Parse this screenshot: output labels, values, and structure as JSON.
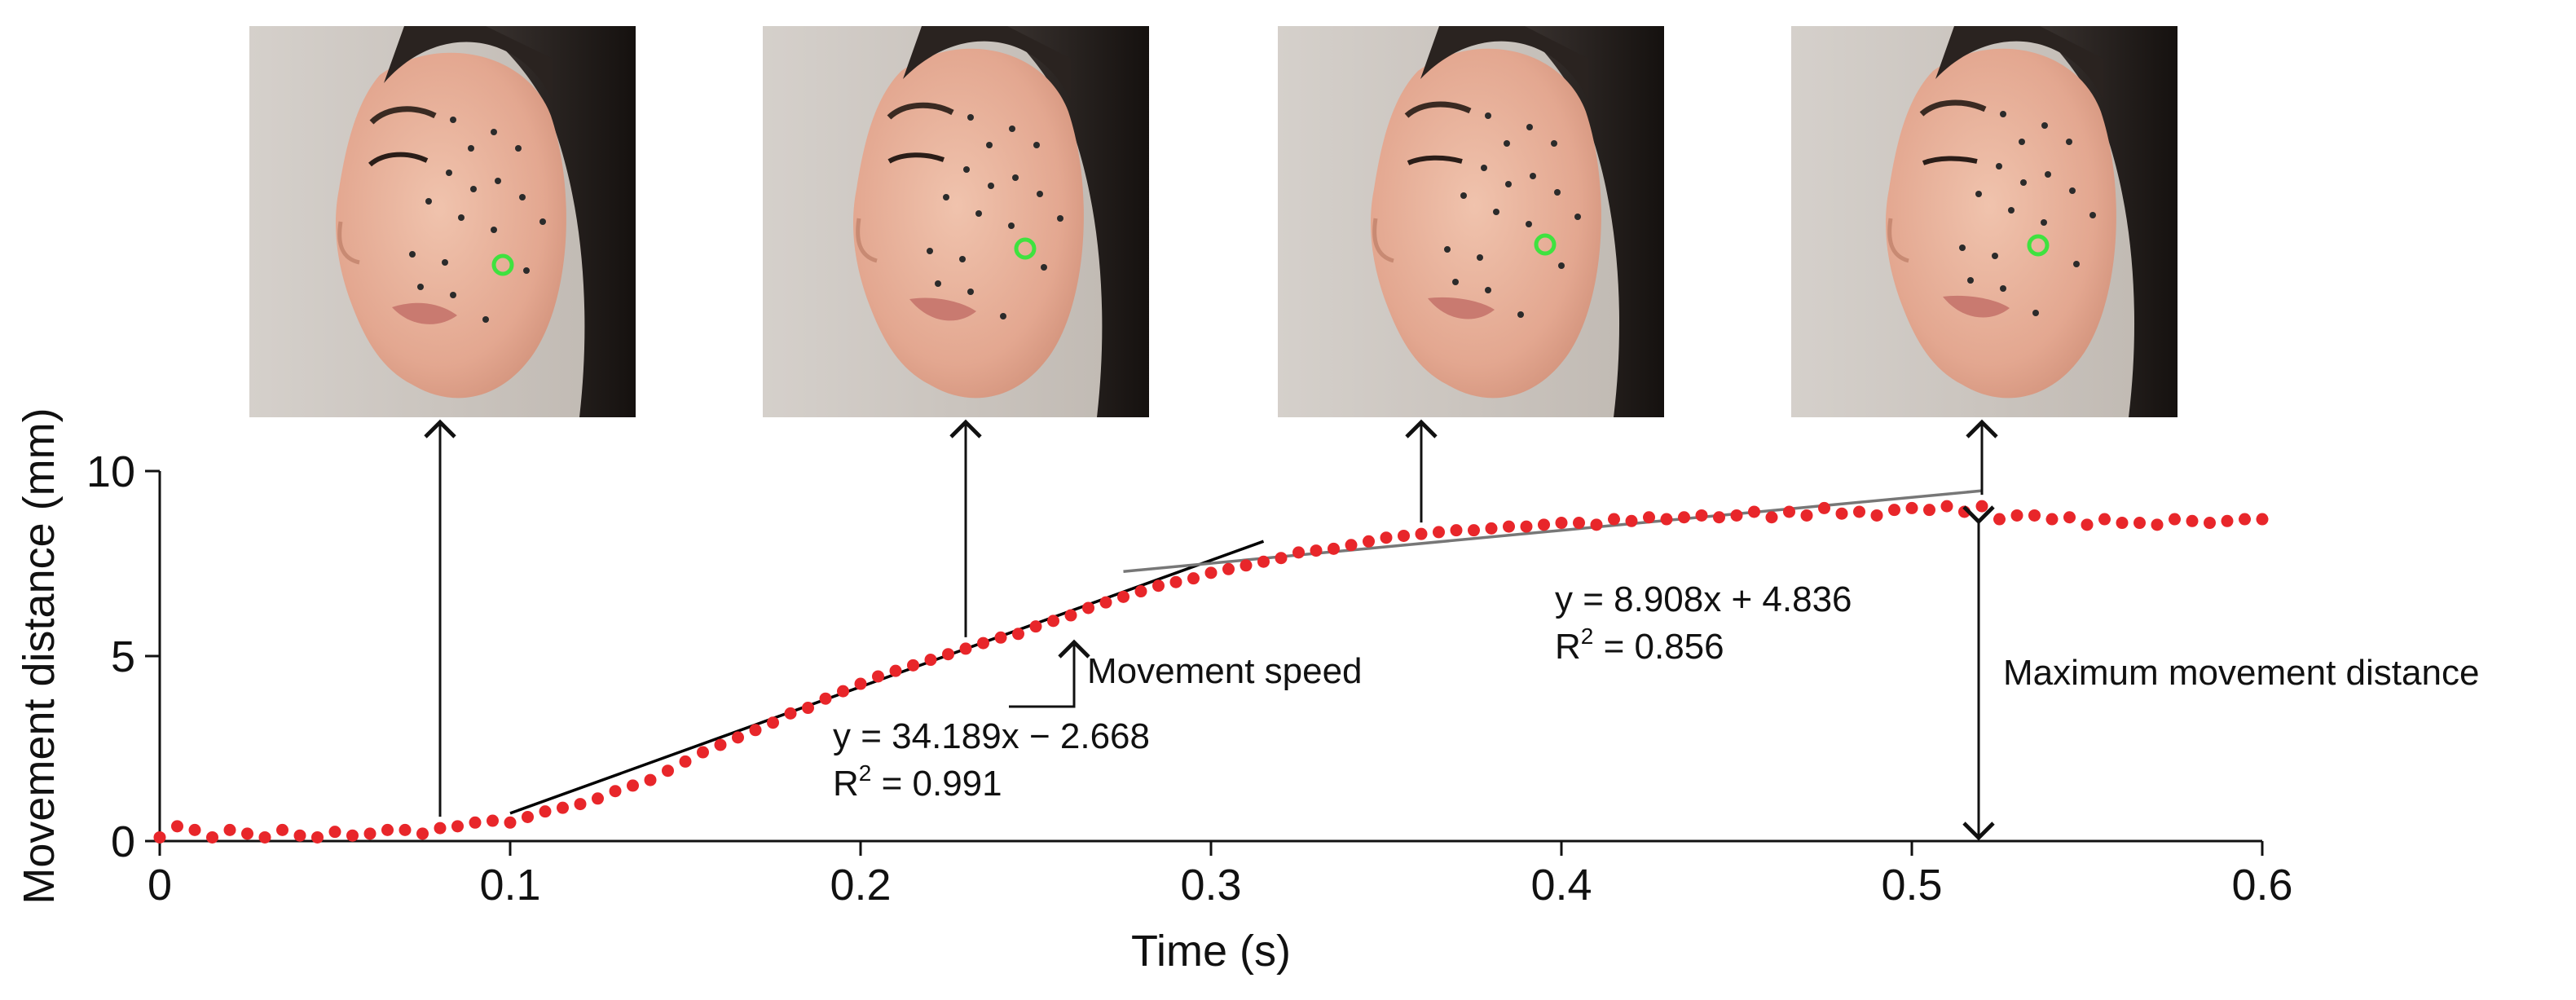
{
  "chart_data": {
    "type": "scatter",
    "title": "",
    "xlabel": "Time (s)",
    "ylabel": "Movement distance (mm)",
    "xlim": [
      0,
      0.6
    ],
    "ylim": [
      0,
      10
    ],
    "x_ticks": [
      {
        "value": 0,
        "label": "0"
      },
      {
        "value": 0.1,
        "label": "0.1"
      },
      {
        "value": 0.2,
        "label": "0.2"
      },
      {
        "value": 0.3,
        "label": "0.3"
      },
      {
        "value": 0.4,
        "label": "0.4"
      },
      {
        "value": 0.5,
        "label": "0.5"
      },
      {
        "value": 0.6,
        "label": "0.6"
      }
    ],
    "y_ticks": [
      {
        "value": 0,
        "label": "0"
      },
      {
        "value": 5,
        "label": "5"
      },
      {
        "value": 10,
        "label": "10"
      }
    ],
    "grid": false,
    "legend": "none",
    "point_color": "#e8262a",
    "series": [
      {
        "x": [
          0.0,
          0.005,
          0.01,
          0.015,
          0.02,
          0.025,
          0.03,
          0.035,
          0.04,
          0.045,
          0.05,
          0.055,
          0.06,
          0.065,
          0.07,
          0.075,
          0.08,
          0.085,
          0.09,
          0.095,
          0.1,
          0.105,
          0.11,
          0.115,
          0.12,
          0.125,
          0.13,
          0.135,
          0.14,
          0.145,
          0.15,
          0.155,
          0.16,
          0.165,
          0.17,
          0.175,
          0.18,
          0.185,
          0.19,
          0.195,
          0.2,
          0.205,
          0.21,
          0.215,
          0.22,
          0.225,
          0.23,
          0.235,
          0.24,
          0.245,
          0.25,
          0.255,
          0.26,
          0.265,
          0.27,
          0.275,
          0.28,
          0.285,
          0.29,
          0.295,
          0.3,
          0.305,
          0.31,
          0.315,
          0.32,
          0.325,
          0.33,
          0.335,
          0.34,
          0.345,
          0.35,
          0.355,
          0.36,
          0.365,
          0.37,
          0.375,
          0.38,
          0.385,
          0.39,
          0.395,
          0.4,
          0.405,
          0.41,
          0.415,
          0.42,
          0.425,
          0.43,
          0.435,
          0.44,
          0.445,
          0.45,
          0.455,
          0.46,
          0.465,
          0.47,
          0.475,
          0.48,
          0.485,
          0.49,
          0.495,
          0.5,
          0.505,
          0.51,
          0.515,
          0.52,
          0.525,
          0.53,
          0.535,
          0.54,
          0.545,
          0.55,
          0.555,
          0.56,
          0.565,
          0.57,
          0.575,
          0.58,
          0.585,
          0.59,
          0.595,
          0.6
        ],
        "y": [
          0.1,
          0.4,
          0.3,
          0.1,
          0.3,
          0.2,
          0.1,
          0.3,
          0.15,
          0.1,
          0.25,
          0.15,
          0.2,
          0.3,
          0.3,
          0.2,
          0.35,
          0.4,
          0.5,
          0.55,
          0.5,
          0.65,
          0.8,
          0.9,
          1.0,
          1.15,
          1.35,
          1.5,
          1.65,
          1.9,
          2.15,
          2.4,
          2.6,
          2.8,
          3.0,
          3.2,
          3.45,
          3.6,
          3.85,
          4.05,
          4.25,
          4.45,
          4.6,
          4.75,
          4.9,
          5.05,
          5.2,
          5.35,
          5.5,
          5.6,
          5.8,
          5.95,
          6.1,
          6.3,
          6.45,
          6.6,
          6.75,
          6.9,
          7.0,
          7.1,
          7.25,
          7.35,
          7.45,
          7.55,
          7.65,
          7.8,
          7.85,
          7.9,
          8.0,
          8.1,
          8.2,
          8.25,
          8.3,
          8.35,
          8.4,
          8.4,
          8.45,
          8.5,
          8.5,
          8.55,
          8.6,
          8.6,
          8.55,
          8.7,
          8.65,
          8.75,
          8.7,
          8.75,
          8.8,
          8.75,
          8.8,
          8.9,
          8.75,
          8.9,
          8.8,
          9.0,
          8.85,
          8.9,
          8.8,
          8.95,
          9.0,
          8.95,
          9.05,
          8.9,
          9.05,
          8.7,
          8.8,
          8.8,
          8.7,
          8.75,
          8.55,
          8.7,
          8.6,
          8.6,
          8.55,
          8.7,
          8.65,
          8.6,
          8.65,
          8.7,
          8.7
        ]
      }
    ],
    "fits": [
      {
        "x0": 0.1,
        "x1": 0.315,
        "slope": 34.189,
        "intercept": -2.668,
        "color": "#000000"
      },
      {
        "x0": 0.275,
        "x1": 0.52,
        "slope": 8.908,
        "intercept": 4.836,
        "color": "#777777"
      }
    ],
    "annotations": {
      "fit1_equation": "y = 34.189x − 2.668",
      "fit1_r2_prefix": "R",
      "fit1_r2_sup": "2",
      "fit1_r2_value": " = 0.991",
      "fit2_equation": "y = 8.908x + 4.836",
      "fit2_r2_prefix": "R",
      "fit2_r2_sup": "2",
      "fit2_r2_value": " = 0.856",
      "speed_label": "Movement speed",
      "max_label": "Maximum movement distance"
    },
    "frame_times": [
      0.08,
      0.23,
      0.36,
      0.52
    ],
    "marker_color": "#3fe23f"
  }
}
